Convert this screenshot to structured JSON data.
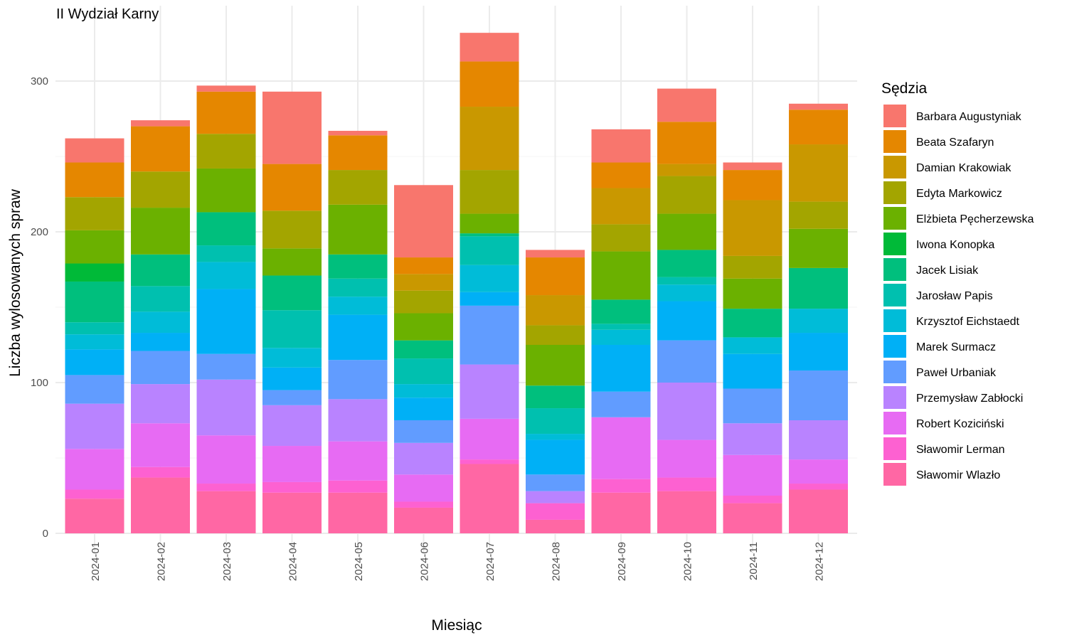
{
  "chart_data": {
    "type": "bar",
    "stacked": true,
    "title": "II Wydział Karny",
    "xlabel": "Miesiąc",
    "ylabel": "Liczba wylosowanych spraw",
    "ylim": [
      0,
      335
    ],
    "yticks": [
      0,
      100,
      200,
      300
    ],
    "grid": true,
    "legend_title": "Sędzia",
    "legend_position": "right",
    "categories": [
      "2024-01",
      "2024-02",
      "2024-03",
      "2024-04",
      "2024-05",
      "2024-06",
      "2024-07",
      "2024-08",
      "2024-09",
      "2024-10",
      "2024-11",
      "2024-12"
    ],
    "series": [
      {
        "name": "Barbara Augustyniak",
        "color": "#F8766D",
        "values": [
          16,
          4,
          4,
          48,
          3,
          48,
          19,
          5,
          22,
          22,
          5,
          4
        ]
      },
      {
        "name": "Beata Szafaryn",
        "color": "#E58700",
        "values": [
          23,
          30,
          28,
          31,
          23,
          11,
          30,
          25,
          17,
          28,
          20,
          23
        ]
      },
      {
        "name": "Damian Krakowiak",
        "color": "#C99800",
        "values": [
          0,
          0,
          0,
          0,
          0,
          11,
          42,
          20,
          24,
          8,
          37,
          38
        ]
      },
      {
        "name": "Edyta Markowicz",
        "color": "#A3A500",
        "values": [
          22,
          24,
          23,
          25,
          23,
          15,
          29,
          13,
          18,
          25,
          15,
          18
        ]
      },
      {
        "name": "Elżbieta Pęcherzewska",
        "color": "#6BB100",
        "values": [
          22,
          31,
          29,
          18,
          33,
          18,
          13,
          27,
          32,
          24,
          20,
          26
        ]
      },
      {
        "name": "Iwona Konopka",
        "color": "#00BA38",
        "values": [
          12,
          0,
          0,
          0,
          0,
          0,
          0,
          0,
          0,
          0,
          0,
          0
        ]
      },
      {
        "name": "Jacek Lisiak",
        "color": "#00BF7D",
        "values": [
          27,
          21,
          22,
          23,
          16,
          12,
          2,
          15,
          16,
          18,
          19,
          27
        ]
      },
      {
        "name": "Jarosław Papis",
        "color": "#00C0AF",
        "values": [
          8,
          17,
          11,
          25,
          12,
          17,
          19,
          17,
          4,
          5,
          0,
          0
        ]
      },
      {
        "name": "Krzysztof Eichstaedt",
        "color": "#00BCD8",
        "values": [
          10,
          14,
          18,
          13,
          12,
          9,
          18,
          4,
          10,
          11,
          11,
          16
        ]
      },
      {
        "name": "Marek Surmacz",
        "color": "#00B0F6",
        "values": [
          17,
          12,
          43,
          15,
          30,
          15,
          9,
          23,
          31,
          26,
          23,
          25
        ]
      },
      {
        "name": "Paweł Urbaniak",
        "color": "#619CFF",
        "values": [
          19,
          22,
          17,
          10,
          26,
          15,
          39,
          11,
          17,
          28,
          23,
          33
        ]
      },
      {
        "name": "Przemysław Zabłocki",
        "color": "#B983FF",
        "values": [
          30,
          26,
          37,
          27,
          28,
          21,
          36,
          8,
          0,
          38,
          21,
          26
        ]
      },
      {
        "name": "Robert Koziciński",
        "color": "#E76BF3",
        "values": [
          27,
          29,
          32,
          24,
          26,
          18,
          27,
          0,
          41,
          25,
          27,
          16
        ]
      },
      {
        "name": "Sławomir Lerman",
        "color": "#FD61D1",
        "values": [
          6,
          7,
          5,
          7,
          8,
          4,
          3,
          11,
          9,
          9,
          5,
          4
        ]
      },
      {
        "name": "Sławomir Wlazło",
        "color": "#FF67A4",
        "values": [
          23,
          37,
          28,
          27,
          27,
          17,
          46,
          9,
          27,
          28,
          20,
          29
        ]
      }
    ]
  }
}
